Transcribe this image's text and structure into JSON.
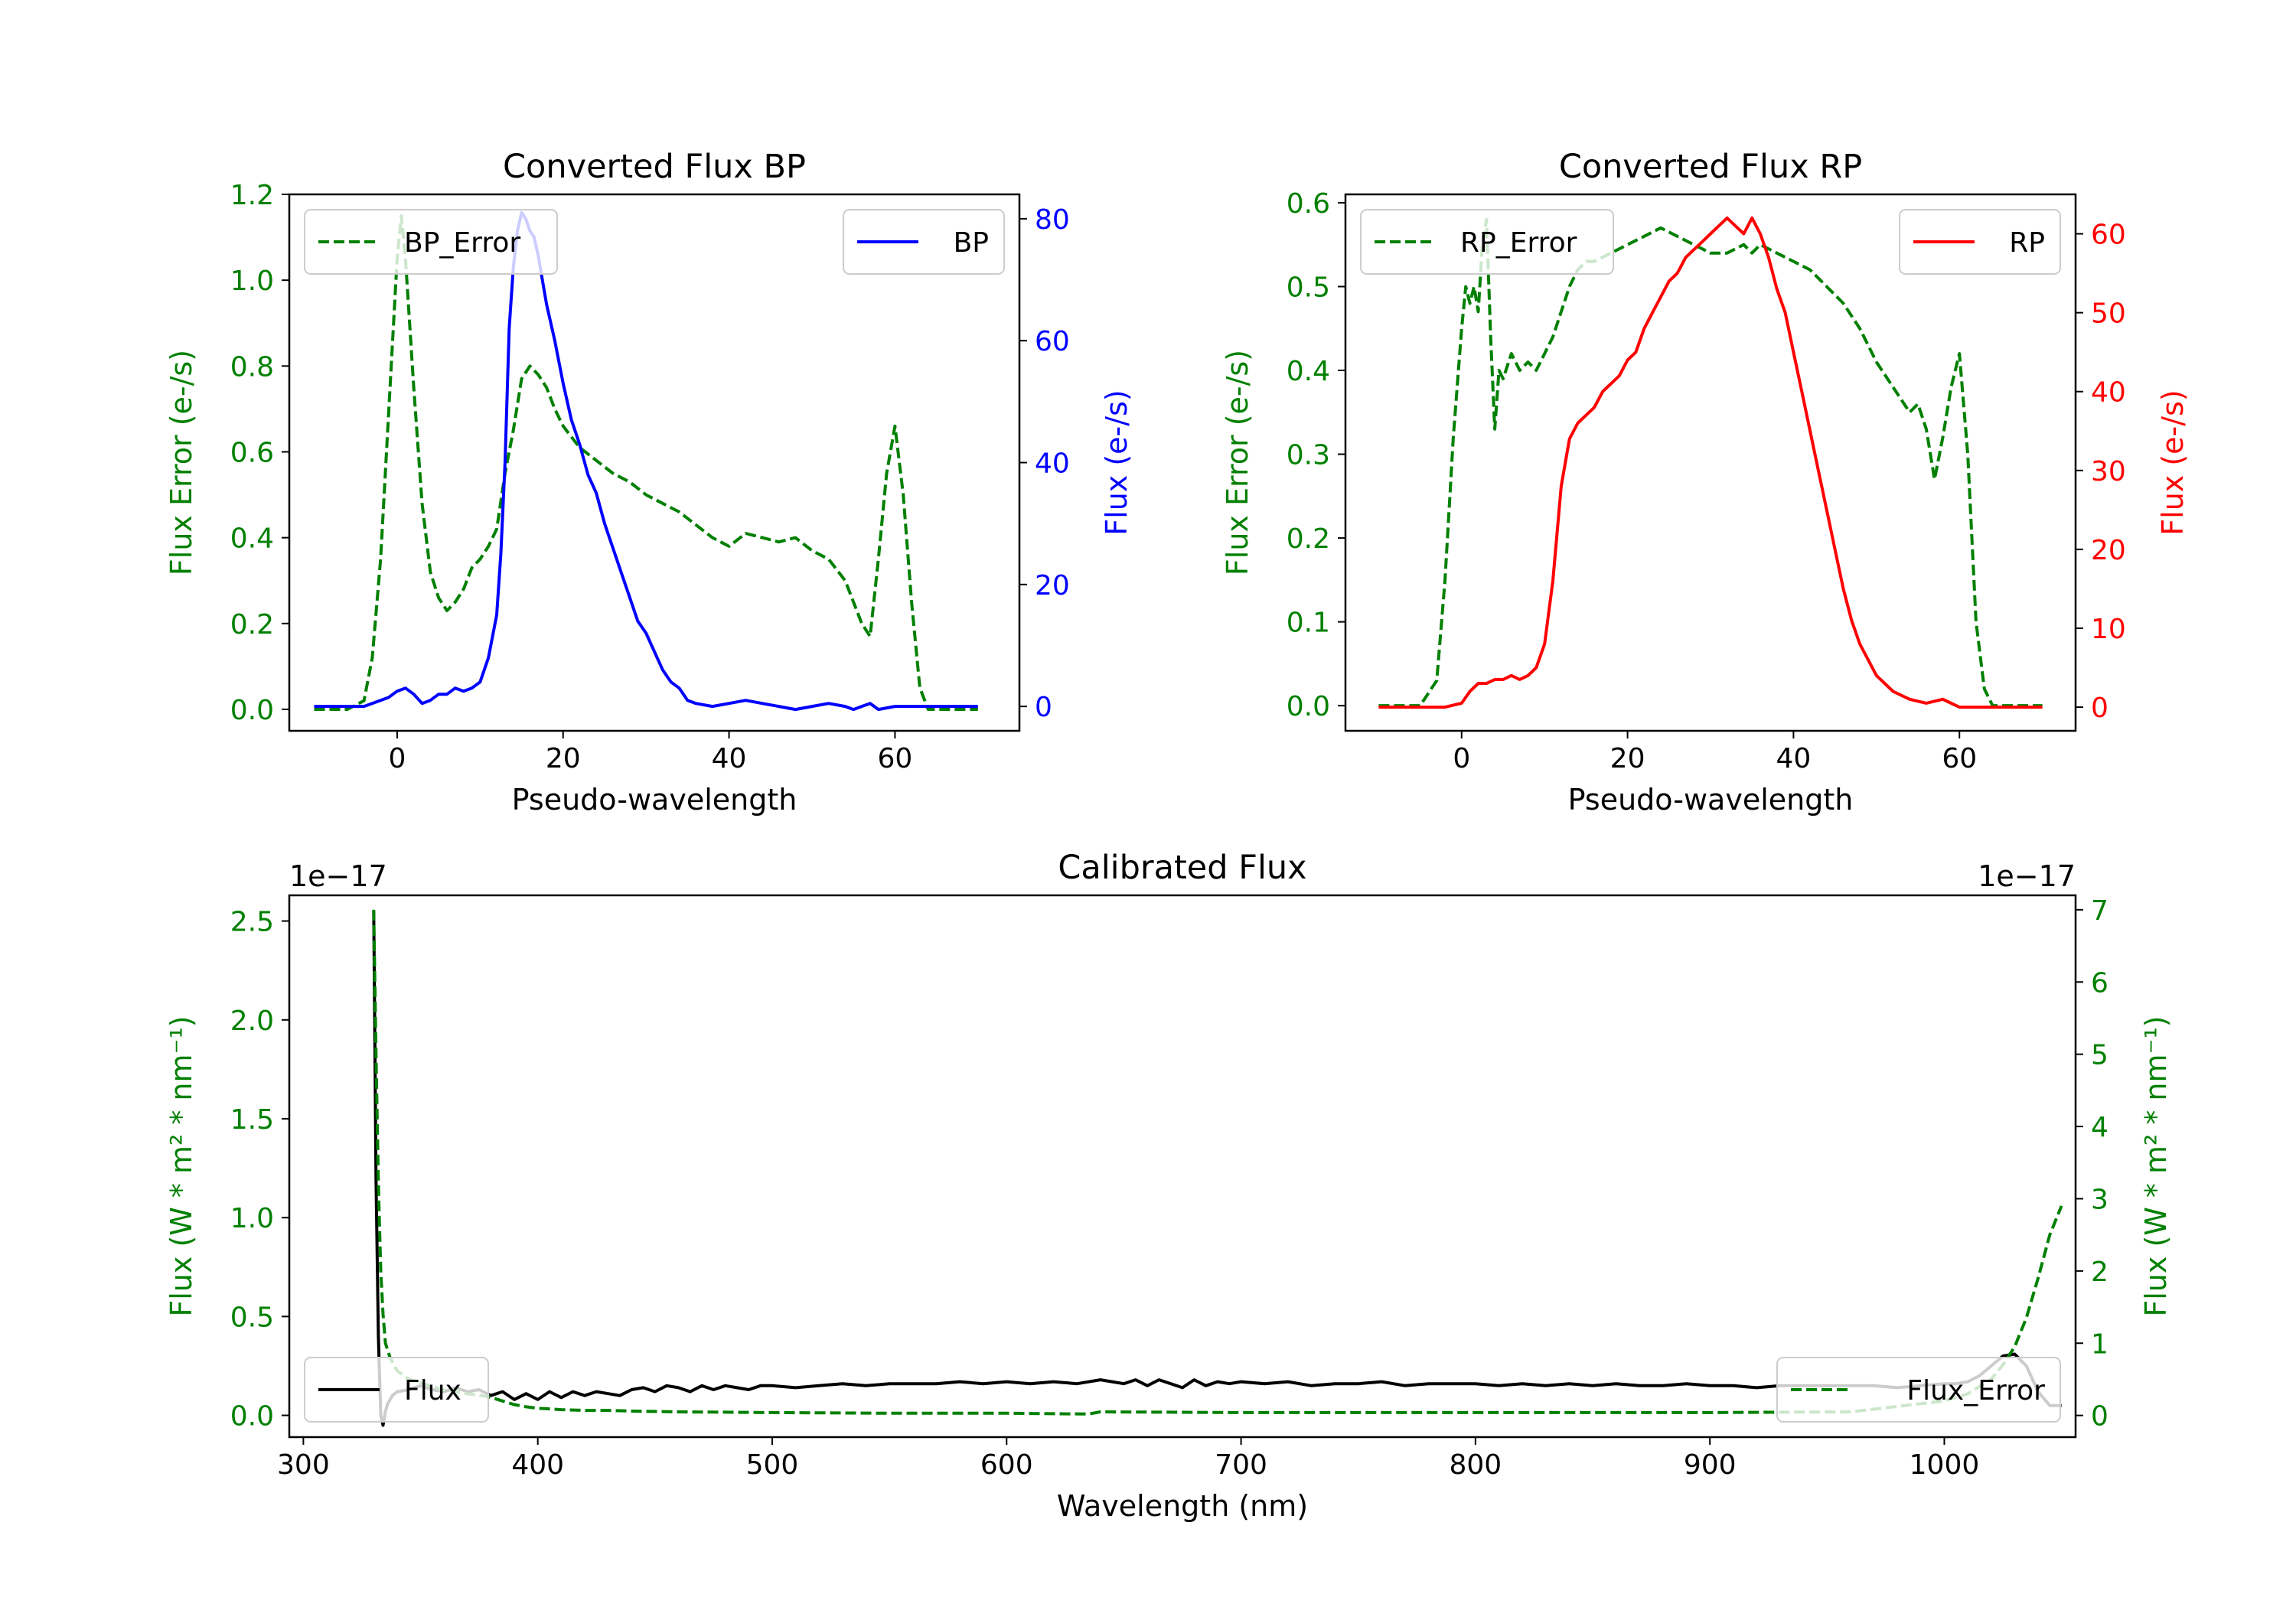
{
  "colors": {
    "green": "#008000",
    "blue": "#0000ff",
    "red": "#ff0000",
    "black": "#000000"
  },
  "chart_data": [
    {
      "id": "bp",
      "type": "line",
      "title": "Converted Flux BP",
      "xlabel": "Pseudo-wavelength",
      "ylabel_left": "Flux Error (e-/s)",
      "ylabel_right": "Flux (e-/s)",
      "xlim": [
        -13,
        75
      ],
      "ylim_left": [
        -0.05,
        1.2
      ],
      "ylim_right": [
        -4,
        84
      ],
      "xticks": [
        0,
        20,
        40,
        60
      ],
      "yticks_left": [
        0.0,
        0.2,
        0.4,
        0.6,
        0.8,
        1.0,
        1.2
      ],
      "yticks_right": [
        0,
        20,
        40,
        60,
        80
      ],
      "legend_left": "BP_Error",
      "legend_right": "BP",
      "series": [
        {
          "name": "BP_Error",
          "axis": "left",
          "color": "green",
          "dash": true,
          "x": [
            -10,
            -6,
            -4,
            -3,
            -2,
            -1,
            0,
            0.5,
            1,
            2,
            3,
            4,
            5,
            6,
            7,
            8,
            9,
            10,
            11,
            12,
            13,
            14,
            15,
            16,
            17,
            18,
            19,
            20,
            22,
            24,
            26,
            28,
            30,
            32,
            34,
            36,
            38,
            40,
            42,
            44,
            46,
            48,
            50,
            52,
            54,
            55,
            56,
            57,
            58,
            59,
            60,
            61,
            62,
            63,
            64,
            66,
            70
          ],
          "y": [
            0.0,
            0.0,
            0.02,
            0.12,
            0.35,
            0.7,
            1.05,
            1.15,
            1.05,
            0.75,
            0.48,
            0.32,
            0.26,
            0.23,
            0.25,
            0.28,
            0.33,
            0.35,
            0.38,
            0.42,
            0.55,
            0.65,
            0.77,
            0.8,
            0.78,
            0.75,
            0.7,
            0.66,
            0.61,
            0.58,
            0.55,
            0.53,
            0.5,
            0.48,
            0.46,
            0.43,
            0.4,
            0.38,
            0.41,
            0.4,
            0.39,
            0.4,
            0.37,
            0.35,
            0.3,
            0.25,
            0.2,
            0.17,
            0.35,
            0.55,
            0.66,
            0.5,
            0.25,
            0.05,
            0.0,
            0.0,
            0.0
          ]
        },
        {
          "name": "BP",
          "axis": "right",
          "color": "blue",
          "dash": false,
          "x": [
            -10,
            -4,
            -2,
            -1,
            0,
            1,
            2,
            3,
            4,
            5,
            6,
            7,
            8,
            9,
            10,
            11,
            12,
            12.5,
            13,
            13.5,
            14,
            14.5,
            15,
            15.5,
            16,
            16.5,
            17,
            17.5,
            18,
            19,
            20,
            21,
            22,
            23,
            24,
            25,
            26,
            27,
            28,
            29,
            30,
            31,
            32,
            33,
            34,
            35,
            36,
            38,
            40,
            42,
            44,
            46,
            48,
            50,
            52,
            54,
            55,
            56,
            57,
            58,
            60,
            65,
            70
          ],
          "y": [
            0,
            0,
            1,
            1.5,
            2.5,
            3,
            2,
            0.5,
            1,
            2,
            2,
            3,
            2.5,
            3,
            4,
            8,
            15,
            25,
            40,
            62,
            72,
            78,
            81,
            80,
            78,
            77,
            74,
            70,
            66,
            60,
            53,
            47,
            43,
            38,
            35,
            30,
            26,
            22,
            18,
            14,
            12,
            9,
            6,
            4,
            3,
            1,
            0.5,
            0,
            0.5,
            1,
            0.5,
            0,
            -0.5,
            0,
            0.5,
            0,
            -0.5,
            0,
            0.5,
            -0.5,
            0,
            0,
            0
          ]
        }
      ]
    },
    {
      "id": "rp",
      "type": "line",
      "title": "Converted Flux RP",
      "xlabel": "Pseudo-wavelength",
      "ylabel_left": "Flux Error (e-/s)",
      "ylabel_right": "Flux (e-/s)",
      "xlim": [
        -14,
        74
      ],
      "ylim_left": [
        -0.03,
        0.61
      ],
      "ylim_right": [
        -3,
        65
      ],
      "xticks": [
        0,
        20,
        40,
        60
      ],
      "yticks_left": [
        0.0,
        0.1,
        0.2,
        0.3,
        0.4,
        0.5,
        0.6
      ],
      "yticks_right": [
        0,
        10,
        20,
        30,
        40,
        50,
        60
      ],
      "legend_left": "RP_Error",
      "legend_right": "RP",
      "series": [
        {
          "name": "RP_Error",
          "axis": "left",
          "color": "green",
          "dash": true,
          "x": [
            -10,
            -5,
            -3,
            -2,
            -1,
            0,
            0.5,
            1,
            1.5,
            2,
            2.5,
            3,
            3.5,
            4,
            4.5,
            5,
            6,
            7,
            8,
            9,
            10,
            11,
            12,
            13,
            14,
            15,
            16,
            18,
            20,
            22,
            24,
            26,
            28,
            30,
            32,
            34,
            35,
            36,
            38,
            40,
            42,
            44,
            46,
            48,
            50,
            52,
            54,
            55,
            56,
            57,
            58,
            59,
            60,
            61,
            62,
            63,
            64,
            66,
            70
          ],
          "y": [
            0,
            0,
            0.03,
            0.15,
            0.32,
            0.45,
            0.5,
            0.48,
            0.5,
            0.47,
            0.55,
            0.58,
            0.44,
            0.33,
            0.4,
            0.39,
            0.42,
            0.4,
            0.41,
            0.4,
            0.42,
            0.44,
            0.47,
            0.5,
            0.52,
            0.53,
            0.53,
            0.54,
            0.55,
            0.56,
            0.57,
            0.56,
            0.55,
            0.54,
            0.54,
            0.55,
            0.54,
            0.55,
            0.54,
            0.53,
            0.52,
            0.5,
            0.48,
            0.45,
            0.41,
            0.38,
            0.35,
            0.36,
            0.33,
            0.27,
            0.32,
            0.38,
            0.42,
            0.3,
            0.1,
            0.02,
            0,
            0,
            0
          ]
        },
        {
          "name": "RP",
          "axis": "right",
          "color": "red",
          "dash": false,
          "x": [
            -10,
            -2,
            0,
            1,
            2,
            3,
            4,
            5,
            6,
            7,
            8,
            9,
            10,
            11,
            12,
            13,
            14,
            15,
            16,
            17,
            18,
            19,
            20,
            21,
            22,
            23,
            24,
            25,
            26,
            27,
            28,
            29,
            30,
            31,
            32,
            33,
            34,
            35,
            36,
            37,
            38,
            39,
            40,
            41,
            42,
            43,
            44,
            45,
            46,
            47,
            48,
            50,
            52,
            54,
            56,
            58,
            60,
            62,
            64,
            66,
            70
          ],
          "y": [
            0,
            0,
            0.5,
            2,
            3,
            3,
            3.5,
            3.5,
            4,
            3.5,
            4,
            5,
            8,
            16,
            28,
            34,
            36,
            37,
            38,
            40,
            41,
            42,
            44,
            45,
            48,
            50,
            52,
            54,
            55,
            57,
            58,
            59,
            60,
            61,
            62,
            61,
            60,
            62,
            60,
            57,
            53,
            50,
            45,
            40,
            35,
            30,
            25,
            20,
            15,
            11,
            8,
            4,
            2,
            1,
            0.5,
            1,
            0,
            0,
            0,
            0,
            0
          ]
        }
      ]
    },
    {
      "id": "calibrated",
      "type": "line",
      "title": "Calibrated Flux",
      "xlabel": "Wavelength (nm)",
      "ylabel_left": "Flux (W * m² * nm⁻¹)",
      "ylabel_right": "Flux (W * m² * nm⁻¹)",
      "offset_left": "1e−17",
      "offset_right": "1e−17",
      "xlim": [
        294,
        1056
      ],
      "ylim_left": [
        -0.11,
        2.63
      ],
      "ylim_right": [
        -0.3,
        7.2
      ],
      "xticks": [
        300,
        400,
        500,
        600,
        700,
        800,
        900,
        1000
      ],
      "yticks_left": [
        0.0,
        0.5,
        1.0,
        1.5,
        2.0,
        2.5
      ],
      "yticks_right": [
        0,
        1,
        2,
        3,
        4,
        5,
        6,
        7
      ],
      "legend_left": "Flux",
      "legend_right": "Flux_Error",
      "series": [
        {
          "name": "Flux",
          "axis": "left",
          "color": "black",
          "dash": false,
          "x": [
            330,
            330.5,
            331,
            332,
            333,
            334,
            335,
            336,
            338,
            340,
            345,
            350,
            355,
            360,
            365,
            370,
            375,
            380,
            385,
            390,
            395,
            400,
            405,
            410,
            415,
            420,
            425,
            430,
            435,
            440,
            445,
            450,
            455,
            460,
            465,
            470,
            475,
            480,
            485,
            490,
            495,
            500,
            510,
            520,
            530,
            540,
            550,
            560,
            570,
            580,
            590,
            600,
            610,
            620,
            630,
            640,
            645,
            650,
            655,
            660,
            665,
            670,
            675,
            680,
            685,
            690,
            695,
            700,
            710,
            720,
            730,
            740,
            750,
            760,
            770,
            780,
            790,
            800,
            810,
            820,
            830,
            840,
            850,
            860,
            870,
            880,
            890,
            900,
            910,
            920,
            930,
            940,
            950,
            960,
            970,
            980,
            990,
            1000,
            1005,
            1010,
            1015,
            1020,
            1025,
            1030,
            1035,
            1040,
            1045,
            1050
          ],
          "y": [
            2.55,
            1.9,
            1.2,
            0.4,
            0.0,
            -0.05,
            0.02,
            0.06,
            0.1,
            0.12,
            0.13,
            0.15,
            0.13,
            0.12,
            0.14,
            0.12,
            0.13,
            0.1,
            0.12,
            0.08,
            0.11,
            0.08,
            0.12,
            0.09,
            0.12,
            0.1,
            0.12,
            0.11,
            0.1,
            0.13,
            0.14,
            0.12,
            0.15,
            0.14,
            0.12,
            0.15,
            0.13,
            0.15,
            0.14,
            0.13,
            0.15,
            0.15,
            0.14,
            0.15,
            0.16,
            0.15,
            0.16,
            0.16,
            0.16,
            0.17,
            0.16,
            0.17,
            0.16,
            0.17,
            0.16,
            0.18,
            0.17,
            0.16,
            0.18,
            0.15,
            0.18,
            0.16,
            0.14,
            0.18,
            0.15,
            0.17,
            0.16,
            0.17,
            0.16,
            0.17,
            0.15,
            0.16,
            0.16,
            0.17,
            0.15,
            0.16,
            0.16,
            0.16,
            0.15,
            0.16,
            0.15,
            0.16,
            0.15,
            0.16,
            0.15,
            0.15,
            0.16,
            0.15,
            0.15,
            0.14,
            0.15,
            0.15,
            0.15,
            0.15,
            0.15,
            0.14,
            0.15,
            0.16,
            0.16,
            0.17,
            0.2,
            0.25,
            0.3,
            0.31,
            0.25,
            0.12,
            0.05,
            0.05
          ]
        },
        {
          "name": "Flux_Error",
          "axis": "right",
          "color": "green",
          "dash": true,
          "x": [
            330,
            331,
            332,
            333,
            334,
            335,
            337,
            340,
            345,
            350,
            355,
            360,
            365,
            370,
            375,
            380,
            385,
            390,
            395,
            400,
            410,
            420,
            430,
            440,
            460,
            500,
            550,
            600,
            635,
            640,
            700,
            800,
            900,
            960,
            1000,
            1010,
            1020,
            1025,
            1030,
            1035,
            1040,
            1045,
            1050
          ],
          "y": [
            7.0,
            5.0,
            3.2,
            2.0,
            1.4,
            1.0,
            0.8,
            0.62,
            0.5,
            0.45,
            0.4,
            0.35,
            0.33,
            0.3,
            0.28,
            0.25,
            0.2,
            0.15,
            0.12,
            0.1,
            0.08,
            0.07,
            0.07,
            0.06,
            0.05,
            0.04,
            0.03,
            0.03,
            0.02,
            0.05,
            0.04,
            0.04,
            0.04,
            0.05,
            0.2,
            0.3,
            0.5,
            0.7,
            0.95,
            1.35,
            1.9,
            2.5,
            2.9
          ]
        }
      ]
    }
  ]
}
